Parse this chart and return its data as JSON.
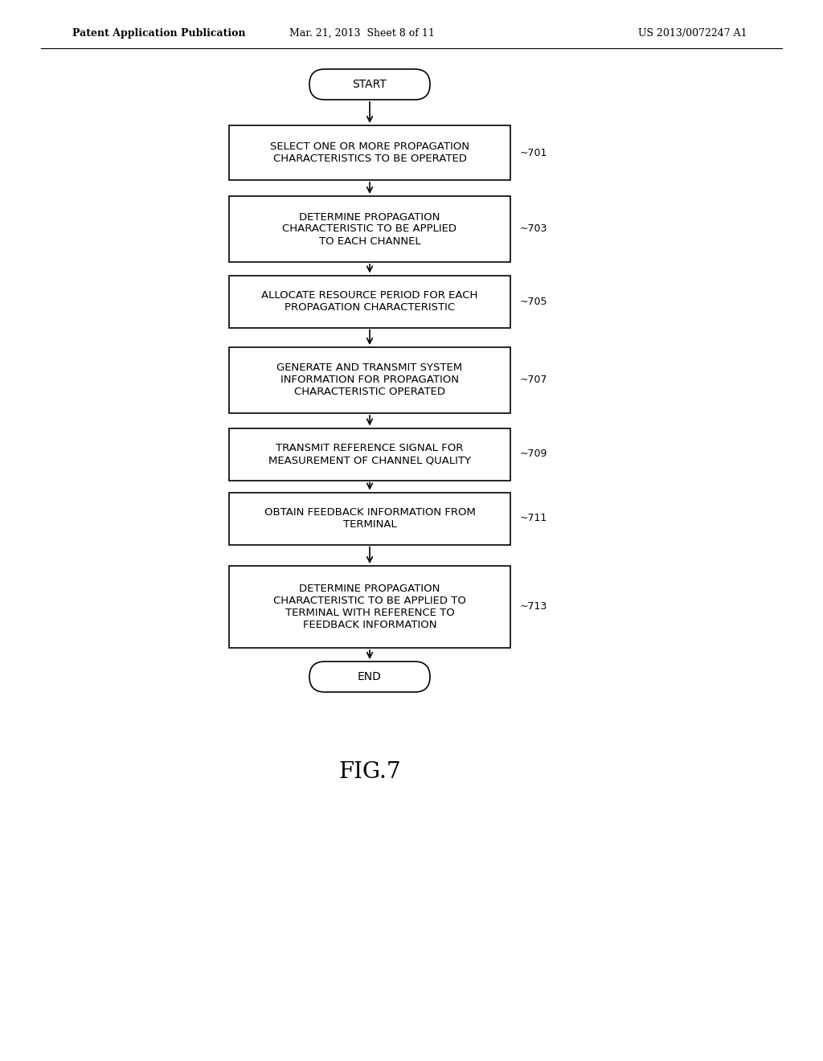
{
  "bg_color": "#ffffff",
  "header_left": "Patent Application Publication",
  "header_mid": "Mar. 21, 2013  Sheet 8 of 11",
  "header_right": "US 2013/0072247 A1",
  "fig_label": "FIG.7",
  "start_label": "START",
  "end_label": "END",
  "boxes": [
    {
      "id": "701",
      "text": "SELECT ONE OR MORE PROPAGATION\nCHARACTERISTICS TO BE OPERATED",
      "label": "701"
    },
    {
      "id": "703",
      "text": "DETERMINE PROPAGATION\nCHARACTERISTIC TO BE APPLIED\nTO EACH CHANNEL",
      "label": "703"
    },
    {
      "id": "705",
      "text": "ALLOCATE RESOURCE PERIOD FOR EACH\nPROPAGATION CHARACTERISTIC",
      "label": "705"
    },
    {
      "id": "707",
      "text": "GENERATE AND TRANSMIT SYSTEM\nINFORMATION FOR PROPAGATION\nCHARACTERISTIC OPERATED",
      "label": "707"
    },
    {
      "id": "709",
      "text": "TRANSMIT REFERENCE SIGNAL FOR\nMEASUREMENT OF CHANNEL QUALITY",
      "label": "709"
    },
    {
      "id": "711",
      "text": "OBTAIN FEEDBACK INFORMATION FROM\nTERMINAL",
      "label": "711"
    },
    {
      "id": "713",
      "text": "DETERMINE PROPAGATION\nCHARACTERISTIC TO BE APPLIED TO\nTERMINAL WITH REFERENCE TO\nFEEDBACK INFORMATION",
      "label": "713"
    }
  ],
  "box_color": "#ffffff",
  "box_edge_color": "#000000",
  "text_color": "#000000",
  "arrow_color": "#000000",
  "font_size_box": 9.5,
  "font_size_header": 9,
  "font_size_fig": 20,
  "font_size_terminal": 10
}
